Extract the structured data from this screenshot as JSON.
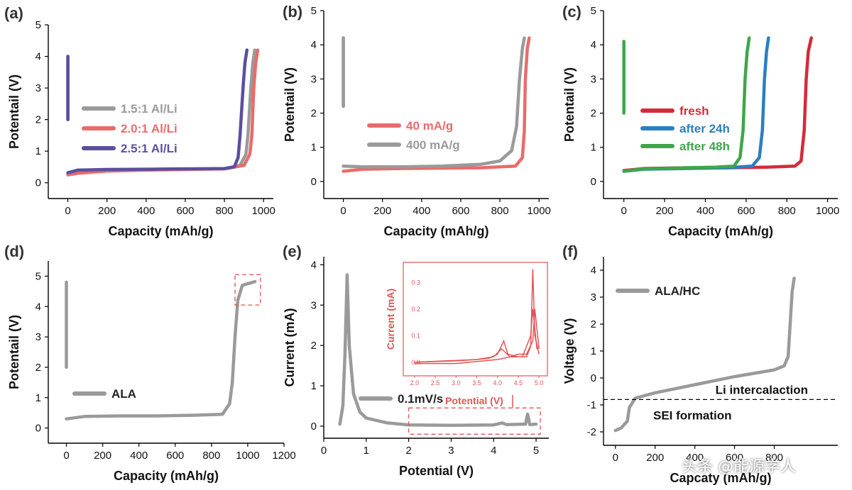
{
  "watermark": "头条 @能源学人",
  "chart_data": [
    {
      "id": "a",
      "panel_label": "(a)",
      "type": "line",
      "xlabel": "Capacity (mAh/g)",
      "ylabel": "Potentail (V)",
      "xlim": [
        -100,
        1050
      ],
      "ylim": [
        -0.5,
        5
      ],
      "xticks": [
        0,
        200,
        400,
        600,
        800,
        1000
      ],
      "yticks": [
        0,
        1,
        2,
        3,
        4,
        5
      ],
      "series": [
        {
          "name": "1.5:1 Al/Li",
          "color": "#9a9a9a",
          "points": [
            [
              0,
              0.3
            ],
            [
              50,
              0.37
            ],
            [
              200,
              0.4
            ],
            [
              400,
              0.42
            ],
            [
              600,
              0.43
            ],
            [
              800,
              0.45
            ],
            [
              880,
              0.55
            ],
            [
              910,
              0.9
            ],
            [
              920,
              1.5
            ],
            [
              935,
              3.0
            ],
            [
              945,
              3.8
            ],
            [
              955,
              4.2
            ]
          ],
          "pre": [
            [
              0,
              4.0
            ],
            [
              0,
              2.0
            ]
          ]
        },
        {
          "name": "2.0:1 Al/Li",
          "color": "#e96b6b",
          "points": [
            [
              0,
              0.25
            ],
            [
              50,
              0.3
            ],
            [
              200,
              0.37
            ],
            [
              400,
              0.4
            ],
            [
              600,
              0.42
            ],
            [
              800,
              0.44
            ],
            [
              900,
              0.55
            ],
            [
              930,
              0.9
            ],
            [
              940,
              1.5
            ],
            [
              950,
              3.0
            ],
            [
              960,
              3.8
            ],
            [
              970,
              4.2
            ]
          ],
          "pre": [
            [
              0,
              4.0
            ],
            [
              0,
              2.0
            ]
          ]
        },
        {
          "name": "2.5:1 Al/Li",
          "color": "#5a4fa0",
          "points": [
            [
              0,
              0.32
            ],
            [
              50,
              0.4
            ],
            [
              200,
              0.42
            ],
            [
              400,
              0.43
            ],
            [
              600,
              0.44
            ],
            [
              800,
              0.45
            ],
            [
              850,
              0.5
            ],
            [
              870,
              0.8
            ],
            [
              880,
              1.5
            ],
            [
              895,
              3.0
            ],
            [
              905,
              3.8
            ],
            [
              915,
              4.2
            ]
          ],
          "pre": [
            [
              0,
              4.0
            ],
            [
              0,
              2.0
            ]
          ]
        }
      ]
    },
    {
      "id": "b",
      "panel_label": "(b)",
      "type": "line",
      "xlabel": "Capacity (mAh/g)",
      "ylabel": "Potentail (V)",
      "xlim": [
        -100,
        1050
      ],
      "ylim": [
        -0.5,
        5
      ],
      "xticks": [
        0,
        200,
        400,
        600,
        800,
        1000
      ],
      "yticks": [
        0,
        1,
        2,
        3,
        4,
        5
      ],
      "series": [
        {
          "name": "40 mA/g",
          "color": "#e96b6b",
          "points": [
            [
              0,
              0.3
            ],
            [
              100,
              0.36
            ],
            [
              300,
              0.38
            ],
            [
              500,
              0.39
            ],
            [
              700,
              0.4
            ],
            [
              880,
              0.45
            ],
            [
              915,
              0.7
            ],
            [
              925,
              1.5
            ],
            [
              930,
              3.0
            ],
            [
              940,
              3.9
            ],
            [
              950,
              4.2
            ]
          ],
          "pre": [
            [
              0,
              4.2
            ],
            [
              0,
              2.2
            ]
          ]
        },
        {
          "name": "400 mA/g",
          "color": "#9a9a9a",
          "points": [
            [
              0,
              0.45
            ],
            [
              100,
              0.43
            ],
            [
              300,
              0.43
            ],
            [
              500,
              0.45
            ],
            [
              700,
              0.5
            ],
            [
              800,
              0.6
            ],
            [
              860,
              0.9
            ],
            [
              885,
              1.6
            ],
            [
              900,
              3.0
            ],
            [
              915,
              3.9
            ],
            [
              925,
              4.2
            ]
          ],
          "pre": [
            [
              0,
              4.2
            ],
            [
              0,
              2.2
            ]
          ]
        }
      ]
    },
    {
      "id": "c",
      "panel_label": "(c)",
      "type": "line",
      "xlabel": "Capacity (mAh/g)",
      "ylabel": "Potentail (V)",
      "xlim": [
        -100,
        1050
      ],
      "ylim": [
        -0.5,
        5
      ],
      "xticks": [
        0,
        200,
        400,
        600,
        800,
        1000
      ],
      "yticks": [
        0,
        1,
        2,
        3,
        4,
        5
      ],
      "series": [
        {
          "name": "fresh",
          "color": "#d42a3a",
          "points": [
            [
              0,
              0.32
            ],
            [
              100,
              0.38
            ],
            [
              300,
              0.4
            ],
            [
              500,
              0.4
            ],
            [
              700,
              0.42
            ],
            [
              840,
              0.45
            ],
            [
              870,
              0.6
            ],
            [
              885,
              1.5
            ],
            [
              895,
              3.0
            ],
            [
              905,
              3.8
            ],
            [
              920,
              4.2
            ]
          ],
          "pre": null
        },
        {
          "name": "after 24h",
          "color": "#2a7fc0",
          "points": [
            [
              0,
              0.3
            ],
            [
              100,
              0.36
            ],
            [
              300,
              0.38
            ],
            [
              500,
              0.4
            ],
            [
              630,
              0.45
            ],
            [
              665,
              0.7
            ],
            [
              680,
              1.5
            ],
            [
              690,
              3.0
            ],
            [
              700,
              3.8
            ],
            [
              710,
              4.2
            ]
          ],
          "pre": null
        },
        {
          "name": "after 48h",
          "color": "#3fa64a",
          "points": [
            [
              0,
              0.3
            ],
            [
              100,
              0.37
            ],
            [
              300,
              0.4
            ],
            [
              450,
              0.42
            ],
            [
              540,
              0.45
            ],
            [
              570,
              0.7
            ],
            [
              585,
              1.5
            ],
            [
              595,
              3.0
            ],
            [
              605,
              3.8
            ],
            [
              615,
              4.2
            ]
          ],
          "pre": [
            [
              0,
              4.1
            ],
            [
              0,
              2.0
            ]
          ]
        }
      ]
    },
    {
      "id": "d",
      "panel_label": "(d)",
      "type": "line",
      "xlabel": "Capacity (mAh/g)",
      "ylabel": "Potentail (V)",
      "xlim": [
        -100,
        1200
      ],
      "ylim": [
        -0.5,
        5.5
      ],
      "xticks": [
        0,
        200,
        400,
        600,
        800,
        1000,
        1200
      ],
      "yticks": [
        0,
        1,
        2,
        3,
        4,
        5
      ],
      "series": [
        {
          "name": "ALA",
          "color": "#9a9a9a",
          "points": [
            [
              0,
              0.3
            ],
            [
              100,
              0.38
            ],
            [
              300,
              0.4
            ],
            [
              500,
              0.4
            ],
            [
              700,
              0.42
            ],
            [
              860,
              0.45
            ],
            [
              900,
              0.8
            ],
            [
              915,
              1.5
            ],
            [
              930,
              3.0
            ],
            [
              945,
              4.2
            ],
            [
              970,
              4.7
            ],
            [
              1000,
              4.75
            ],
            [
              1040,
              4.82
            ]
          ],
          "pre": [
            [
              0,
              4.8
            ],
            [
              0,
              2.0
            ]
          ]
        }
      ],
      "highlight": {
        "x": [
          930,
          1070
        ],
        "y": [
          4.05,
          5.05
        ]
      }
    },
    {
      "id": "e",
      "panel_label": "(e)",
      "type": "line",
      "xlabel": "Potential (V)",
      "ylabel": "Current (mA)",
      "xlim": [
        0,
        5.3
      ],
      "ylim": [
        -0.3,
        4.2
      ],
      "xticks": [
        0,
        1,
        2,
        3,
        4,
        5
      ],
      "yticks": [
        0,
        1,
        2,
        3,
        4
      ],
      "series": [
        {
          "name": "0.1mV/s",
          "color": "#9a9a9a",
          "points": [
            [
              0.38,
              0.05
            ],
            [
              0.45,
              0.5
            ],
            [
              0.5,
              1.8
            ],
            [
              0.55,
              3.75
            ],
            [
              0.6,
              2.0
            ],
            [
              0.7,
              0.8
            ],
            [
              0.85,
              0.35
            ],
            [
              1.0,
              0.2
            ],
            [
              1.5,
              0.08
            ],
            [
              2.0,
              0.03
            ],
            [
              3.0,
              0.02
            ],
            [
              4.0,
              0.03
            ],
            [
              4.2,
              0.08
            ],
            [
              4.3,
              0.04
            ],
            [
              4.75,
              0.05
            ],
            [
              4.8,
              0.3
            ],
            [
              4.85,
              0.04
            ],
            [
              5.0,
              0.05
            ]
          ],
          "pre": null
        }
      ],
      "highlight": {
        "x": [
          2.0,
          5.1
        ],
        "y": [
          -0.2,
          0.45
        ]
      },
      "inset": {
        "xlabel": "Potential (V)",
        "ylabel": "Current (mA)",
        "xlim": [
          1.9,
          5.1
        ],
        "ylim": [
          -0.03,
          0.37
        ],
        "xticks": [
          2.0,
          2.5,
          3.0,
          3.5,
          4.0,
          4.5,
          5.0
        ],
        "yticks": [
          0.0,
          0.1,
          0.2,
          0.3
        ],
        "xtick_labels": [
          "2.0",
          "2.5",
          "3.0",
          "3.5",
          "4.0",
          "4.5",
          "5.0"
        ],
        "ytick_labels": [
          "0.0",
          "0.1",
          "0.2",
          "0.3"
        ],
        "color": "#e05555",
        "curves": [
          [
            [
              2.0,
              0.0
            ],
            [
              3.0,
              0.005
            ],
            [
              3.5,
              0.01
            ],
            [
              3.8,
              0.015
            ],
            [
              4.0,
              0.03
            ],
            [
              4.15,
              0.08
            ],
            [
              4.25,
              0.03
            ],
            [
              4.5,
              0.02
            ],
            [
              4.7,
              0.02
            ],
            [
              4.8,
              0.06
            ],
            [
              4.85,
              0.35
            ],
            [
              4.9,
              0.1
            ],
            [
              5.0,
              0.03
            ]
          ],
          [
            [
              5.0,
              0.05
            ],
            [
              4.9,
              0.2
            ],
            [
              4.85,
              0.08
            ],
            [
              4.7,
              0.03
            ],
            [
              4.5,
              0.03
            ],
            [
              4.3,
              0.02
            ],
            [
              4.0,
              0.01
            ],
            [
              3.0,
              -0.005
            ],
            [
              2.0,
              -0.005
            ]
          ],
          [
            [
              2.0,
              0.0
            ],
            [
              3.5,
              0.01
            ],
            [
              3.9,
              0.02
            ],
            [
              4.1,
              0.05
            ],
            [
              4.3,
              0.02
            ],
            [
              4.6,
              0.02
            ],
            [
              4.8,
              0.1
            ],
            [
              4.85,
              0.2
            ],
            [
              4.95,
              0.05
            ]
          ]
        ]
      }
    },
    {
      "id": "f",
      "panel_label": "(f)",
      "type": "line",
      "xlabel": "Capcaty (mAh/g)",
      "ylabel": "Voltage (V)",
      "xlim": [
        -60,
        1120
      ],
      "ylim": [
        -2.5,
        4.5
      ],
      "xticks": [
        0,
        200,
        400,
        600,
        800
      ],
      "yticks": [
        -2,
        -1,
        0,
        1,
        2,
        3,
        4
      ],
      "xtick_labels": [
        "0",
        "200",
        "400",
        "600",
        "800"
      ],
      "series": [
        {
          "name": "ALA/HC",
          "color": "#9a9a9a",
          "points": [
            [
              0,
              -1.95
            ],
            [
              30,
              -1.85
            ],
            [
              60,
              -1.6
            ],
            [
              70,
              -1.1
            ],
            [
              100,
              -0.75
            ],
            [
              200,
              -0.55
            ],
            [
              400,
              -0.25
            ],
            [
              600,
              0.05
            ],
            [
              800,
              0.3
            ],
            [
              850,
              0.45
            ],
            [
              870,
              0.8
            ],
            [
              880,
              2.0
            ],
            [
              890,
              3.2
            ],
            [
              900,
              3.7
            ]
          ],
          "pre": null
        }
      ],
      "hline": {
        "y": -0.8,
        "above": "Li intercalaction",
        "below": "SEI formation"
      }
    }
  ]
}
